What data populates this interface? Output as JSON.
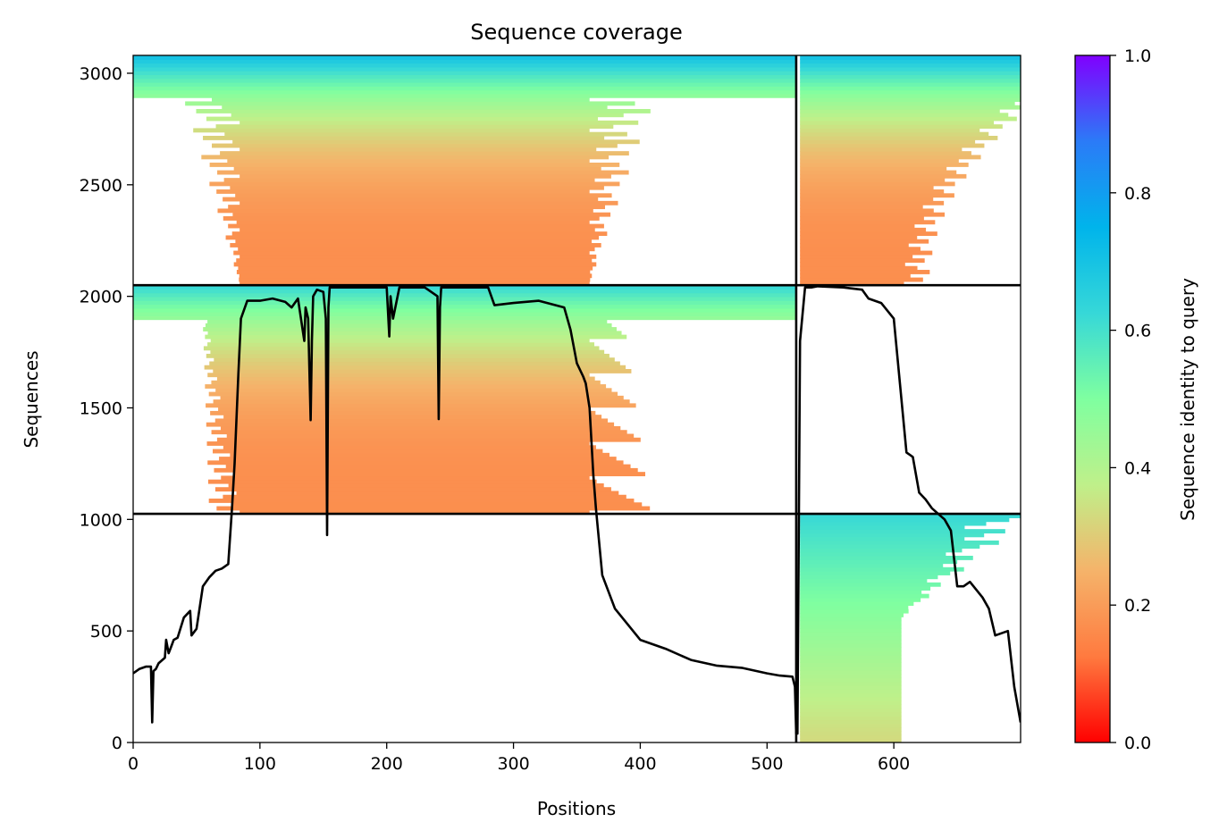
{
  "chart_data": {
    "type": "heatmap",
    "title": "Sequence coverage",
    "xlabel": "Positions",
    "ylabel": "Sequences",
    "xlim": [
      0,
      700
    ],
    "ylim": [
      0,
      3080
    ],
    "x_ticks": [
      0,
      100,
      200,
      300,
      400,
      500,
      600
    ],
    "y_ticks": [
      0,
      500,
      1000,
      1500,
      2000,
      2500,
      3000
    ],
    "grid": false,
    "legend": "none",
    "colorbar": {
      "label": "Sequence identity to query",
      "range": [
        0.0,
        1.0
      ],
      "ticks": [
        "0.0",
        "0.2",
        "0.4",
        "0.6",
        "0.8",
        "1.0"
      ],
      "colormap": "rainbow",
      "stops": [
        "#ff0000",
        "#ff7a3f",
        "#f5b36a",
        "#bff08a",
        "#7fffa0",
        "#36d8d8",
        "#00b4eb",
        "#2b7bf7",
        "#8000ff"
      ]
    },
    "domain_boundaries": {
      "vertical_x": [
        523
      ],
      "horizontal_y": [
        1025,
        2050
      ]
    },
    "coverage_blocks": [
      {
        "x_range": [
          524,
          700
        ],
        "y_range": [
          0,
          1025
        ],
        "identity_top": 0.62,
        "identity_bottom": 0.33
      },
      {
        "x_range": [
          0,
          523
        ],
        "y_range": [
          1025,
          2050
        ],
        "identity_top": 0.62,
        "identity_bottom": 0.17
      },
      {
        "x_range": [
          0,
          523
        ],
        "y_range": [
          2050,
          3080
        ],
        "identity_top": 0.7,
        "identity_bottom": 0.17
      },
      {
        "x_range": [
          524,
          700
        ],
        "y_range": [
          2050,
          3080
        ],
        "identity_top": 0.7,
        "identity_bottom": 0.17
      }
    ],
    "series": [
      {
        "type": "line",
        "color": "#000000",
        "x": [
          0,
          5,
          10,
          14,
          15,
          16,
          18,
          20,
          25,
          26,
          28,
          30,
          32,
          35,
          40,
          45,
          46,
          50,
          55,
          60,
          65,
          70,
          75,
          78,
          80,
          83,
          85,
          90,
          100,
          110,
          120,
          125,
          130,
          135,
          136,
          138,
          140,
          141,
          142,
          145,
          150,
          152,
          153,
          154,
          155,
          158,
          160,
          170,
          180,
          190,
          200,
          202,
          203,
          205,
          210,
          230,
          240,
          241,
          242,
          243,
          250,
          270,
          280,
          285,
          300,
          320,
          340,
          345,
          350,
          355,
          357,
          360,
          363,
          365,
          370,
          380,
          400,
          420,
          440,
          460,
          480,
          500,
          510,
          520,
          522,
          523,
          524,
          526,
          530,
          535,
          540,
          560,
          575,
          580,
          590,
          600,
          605,
          610,
          615,
          620,
          625,
          630,
          640,
          645,
          650,
          655,
          660,
          670,
          675,
          680,
          690,
          695,
          700
        ],
        "y": [
          310,
          330,
          340,
          340,
          90,
          320,
          330,
          355,
          380,
          460,
          400,
          430,
          460,
          470,
          560,
          590,
          480,
          510,
          700,
          740,
          770,
          780,
          800,
          1050,
          1250,
          1650,
          1900,
          1980,
          1980,
          1990,
          1975,
          1950,
          1990,
          1800,
          1950,
          1900,
          1445,
          1800,
          2000,
          2030,
          2020,
          1900,
          930,
          1950,
          2040,
          2040,
          2040,
          2040,
          2040,
          2040,
          2040,
          1820,
          2000,
          1900,
          2040,
          2040,
          2000,
          1450,
          1950,
          2040,
          2040,
          2040,
          2040,
          1960,
          1970,
          1980,
          1950,
          1850,
          1700,
          1640,
          1610,
          1500,
          1200,
          1050,
          750,
          600,
          460,
          420,
          370,
          345,
          335,
          310,
          300,
          295,
          250,
          40,
          40,
          1800,
          2040,
          2040,
          2045,
          2040,
          2030,
          1990,
          1970,
          1900,
          1600,
          1300,
          1280,
          1120,
          1090,
          1050,
          1000,
          950,
          700,
          700,
          720,
          650,
          600,
          480,
          500,
          250,
          90
        ]
      }
    ]
  }
}
